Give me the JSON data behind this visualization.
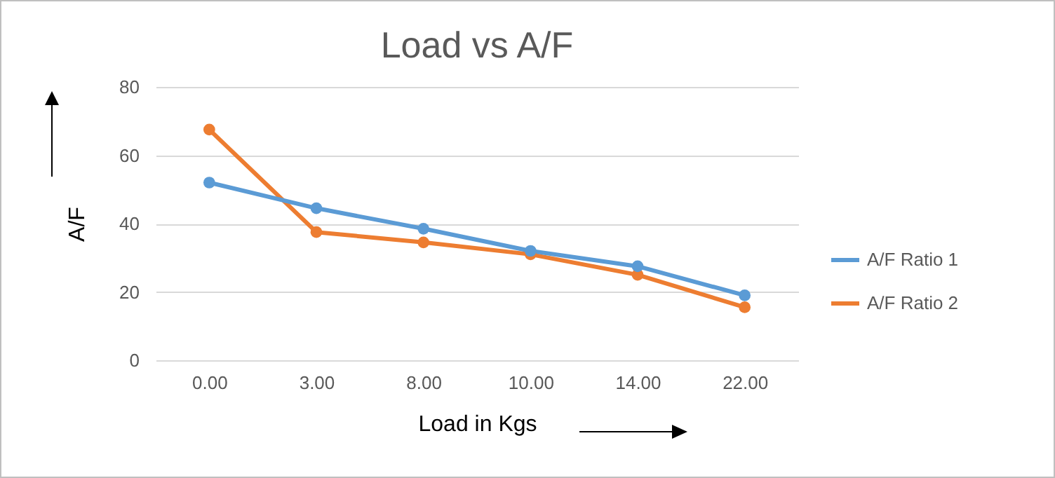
{
  "chart_data": {
    "type": "line",
    "title": "Load vs A/F",
    "xlabel": "Load in Kgs",
    "ylabel": "A/F",
    "categories": [
      "0.00",
      "3.00",
      "8.00",
      "10.00",
      "14.00",
      "22.00"
    ],
    "series": [
      {
        "name": "A/F Ratio 1",
        "color": "#5b9bd5",
        "values": [
          52,
          44.5,
          38.5,
          32,
          27.5,
          19
        ]
      },
      {
        "name": "A/F Ratio 2",
        "color": "#ed7d31",
        "values": [
          67.5,
          37.5,
          34.5,
          31,
          25,
          15.5
        ]
      }
    ],
    "ylim": [
      0,
      80
    ],
    "yticks": [
      0,
      20,
      40,
      60,
      80
    ],
    "grid": "y",
    "legend": "right",
    "marker": "circle"
  }
}
